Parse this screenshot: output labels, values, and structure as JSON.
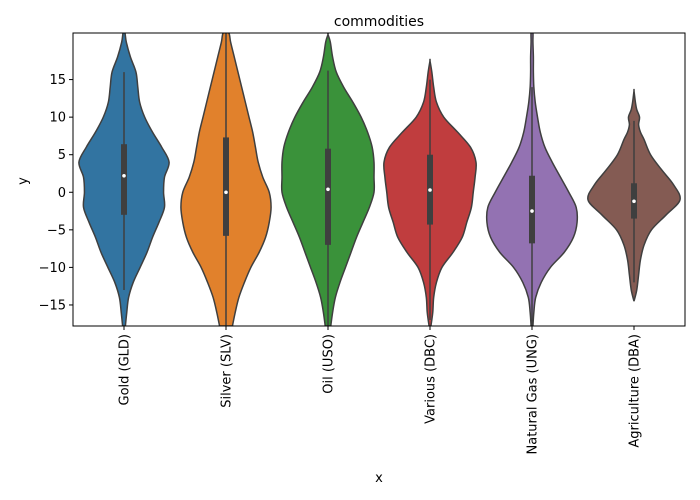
{
  "chart_data": {
    "type": "violin",
    "title": "commodities",
    "xlabel": "x",
    "ylabel": "y",
    "ylim": [
      -17.8,
      21.2
    ],
    "yticks": [
      -15,
      -10,
      -5,
      0,
      5,
      10,
      15
    ],
    "grid": false,
    "categories": [
      "Gold (GLD)",
      "Silver (SLV)",
      "Oil (USO)",
      "Various (DBC)",
      "Natural Gas (UNG)",
      "Agriculture (DBA)"
    ],
    "series": [
      {
        "color": "#3274a1",
        "min": -17.8,
        "q1": -3.0,
        "median": 2.2,
        "q3": 6.4,
        "max": 21.2,
        "whisker_low": -13.0,
        "whisker_high": 16.0,
        "profile": [
          [
            -17.8,
            0.03
          ],
          [
            -16,
            0.06
          ],
          [
            -14,
            0.1
          ],
          [
            -12,
            0.2
          ],
          [
            -10,
            0.35
          ],
          [
            -8,
            0.5
          ],
          [
            -6,
            0.62
          ],
          [
            -4,
            0.76
          ],
          [
            -2,
            0.88
          ],
          [
            0,
            0.86
          ],
          [
            2,
            0.88
          ],
          [
            4,
            0.98
          ],
          [
            6,
            0.82
          ],
          [
            8,
            0.62
          ],
          [
            10,
            0.45
          ],
          [
            12,
            0.34
          ],
          [
            14,
            0.3
          ],
          [
            16,
            0.26
          ],
          [
            18,
            0.14
          ],
          [
            20,
            0.05
          ],
          [
            21.2,
            0.02
          ]
        ]
      },
      {
        "color": "#e1812c",
        "min": -17.8,
        "q1": -5.8,
        "median": 0.0,
        "q3": 7.3,
        "max": 21.2,
        "whisker_low": -17.8,
        "whisker_high": 21.2,
        "profile": [
          [
            -17.8,
            0.14
          ],
          [
            -16,
            0.2
          ],
          [
            -14,
            0.28
          ],
          [
            -12,
            0.4
          ],
          [
            -10,
            0.54
          ],
          [
            -8,
            0.72
          ],
          [
            -6,
            0.86
          ],
          [
            -4,
            0.94
          ],
          [
            -2,
            0.98
          ],
          [
            0,
            0.94
          ],
          [
            2,
            0.8
          ],
          [
            4,
            0.7
          ],
          [
            6,
            0.64
          ],
          [
            8,
            0.58
          ],
          [
            10,
            0.5
          ],
          [
            12,
            0.42
          ],
          [
            14,
            0.34
          ],
          [
            16,
            0.26
          ],
          [
            18,
            0.18
          ],
          [
            20,
            0.1
          ],
          [
            21.2,
            0.06
          ]
        ]
      },
      {
        "color": "#3a923a",
        "min": -17.8,
        "q1": -7.0,
        "median": 0.4,
        "q3": 5.8,
        "max": 21.0,
        "whisker_low": -17.8,
        "whisker_high": 16.2,
        "profile": [
          [
            -17.8,
            0.06
          ],
          [
            -16,
            0.1
          ],
          [
            -14,
            0.16
          ],
          [
            -12,
            0.26
          ],
          [
            -10,
            0.38
          ],
          [
            -8,
            0.5
          ],
          [
            -6,
            0.62
          ],
          [
            -4,
            0.76
          ],
          [
            -2,
            0.9
          ],
          [
            0,
            1.0
          ],
          [
            2,
            1.0
          ],
          [
            4,
            1.0
          ],
          [
            6,
            0.96
          ],
          [
            8,
            0.86
          ],
          [
            10,
            0.72
          ],
          [
            12,
            0.54
          ],
          [
            14,
            0.34
          ],
          [
            16,
            0.18
          ],
          [
            18,
            0.1
          ],
          [
            20,
            0.05
          ],
          [
            21.0,
            0.0
          ]
        ]
      },
      {
        "color": "#c03d3e",
        "min": -17.8,
        "q1": -4.3,
        "median": 0.3,
        "q3": 5.0,
        "max": 17.5,
        "whisker_low": -17.0,
        "whisker_high": 15.0,
        "profile": [
          [
            -17.8,
            0.02
          ],
          [
            -16,
            0.06
          ],
          [
            -14,
            0.08
          ],
          [
            -12,
            0.14
          ],
          [
            -10,
            0.26
          ],
          [
            -8,
            0.5
          ],
          [
            -6,
            0.7
          ],
          [
            -4,
            0.8
          ],
          [
            -2,
            0.9
          ],
          [
            0,
            0.94
          ],
          [
            2,
            0.98
          ],
          [
            4,
            1.0
          ],
          [
            6,
            0.88
          ],
          [
            8,
            0.6
          ],
          [
            10,
            0.3
          ],
          [
            12,
            0.14
          ],
          [
            14,
            0.08
          ],
          [
            16,
            0.04
          ],
          [
            17.5,
            0.0
          ]
        ]
      },
      {
        "color": "#9372b2",
        "min": -17.8,
        "q1": -6.8,
        "median": -2.5,
        "q3": 2.2,
        "max": 21.2,
        "whisker_low": -17.8,
        "whisker_high": 14.0,
        "profile": [
          [
            -17.8,
            0.02
          ],
          [
            -16,
            0.04
          ],
          [
            -14,
            0.08
          ],
          [
            -12,
            0.2
          ],
          [
            -10,
            0.4
          ],
          [
            -8,
            0.7
          ],
          [
            -6,
            0.9
          ],
          [
            -4,
            0.98
          ],
          [
            -2,
            0.96
          ],
          [
            0,
            0.8
          ],
          [
            2,
            0.62
          ],
          [
            4,
            0.44
          ],
          [
            6,
            0.28
          ],
          [
            8,
            0.18
          ],
          [
            10,
            0.12
          ],
          [
            12,
            0.07
          ],
          [
            14,
            0.04
          ],
          [
            16,
            0.03
          ],
          [
            18,
            0.03
          ],
          [
            20,
            0.02
          ],
          [
            21.2,
            0.02
          ]
        ]
      },
      {
        "color": "#845b53",
        "min": -14.5,
        "q1": -3.5,
        "median": -1.2,
        "q3": 1.2,
        "max": 13.5,
        "whisker_low": -12.0,
        "whisker_high": 9.5,
        "profile": [
          [
            -14.5,
            0.0
          ],
          [
            -13,
            0.06
          ],
          [
            -11,
            0.1
          ],
          [
            -9,
            0.14
          ],
          [
            -7,
            0.22
          ],
          [
            -5,
            0.38
          ],
          [
            -3,
            0.7
          ],
          [
            -1,
            1.0
          ],
          [
            1,
            0.86
          ],
          [
            3,
            0.6
          ],
          [
            5,
            0.36
          ],
          [
            7,
            0.22
          ],
          [
            8,
            0.14
          ],
          [
            9,
            0.1
          ],
          [
            10,
            0.12
          ],
          [
            11,
            0.06
          ],
          [
            12,
            0.03
          ],
          [
            13.5,
            0.0
          ]
        ]
      }
    ]
  }
}
